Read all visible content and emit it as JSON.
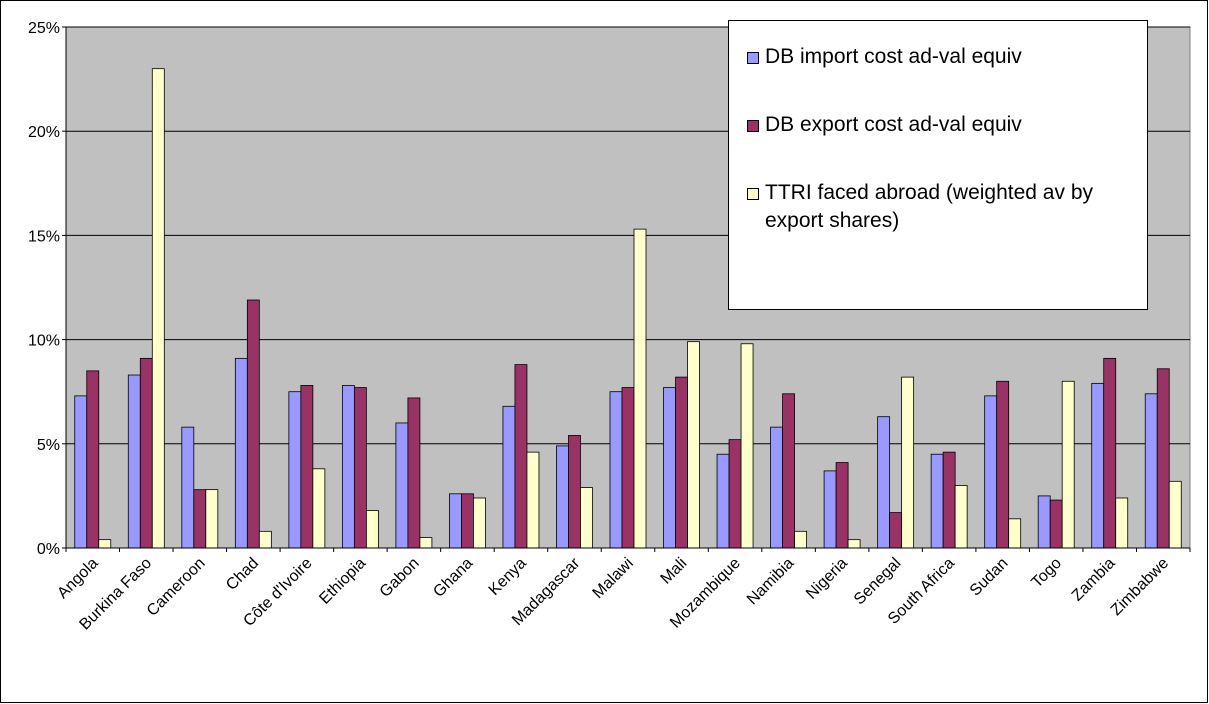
{
  "chart_data": {
    "type": "bar",
    "categories": [
      "Angola",
      "Burkina Faso",
      "Cameroon",
      "Chad",
      "Côte d'Ivoire",
      "Ethiopia",
      "Gabon",
      "Ghana",
      "Kenya",
      "Madagascar",
      "Malawi",
      "Mali",
      "Mozambique",
      "Namibia",
      "Nigeria",
      "Senegal",
      "South Africa",
      "Sudan",
      "Togo",
      "Zambia",
      "Zimbabwe"
    ],
    "series": [
      {
        "name": "DB import cost ad-val equiv",
        "color": "#9999ff",
        "values": [
          7.3,
          8.3,
          5.8,
          9.1,
          7.5,
          7.8,
          6.0,
          2.6,
          6.8,
          4.9,
          7.5,
          7.7,
          4.5,
          5.8,
          3.7,
          6.3,
          4.5,
          7.3,
          2.5,
          7.9,
          7.4
        ]
      },
      {
        "name": "DB export cost ad-val equiv",
        "color": "#993366",
        "values": [
          8.5,
          9.1,
          2.8,
          11.9,
          7.8,
          7.7,
          7.2,
          2.6,
          8.8,
          5.4,
          7.7,
          8.2,
          5.2,
          7.4,
          4.1,
          1.7,
          4.6,
          8.0,
          2.3,
          9.1,
          8.6
        ]
      },
      {
        "name": "TTRI faced abroad (weighted av by export shares)",
        "color": "#ffffcc",
        "values": [
          0.4,
          23.0,
          2.8,
          0.8,
          3.8,
          1.8,
          0.5,
          2.4,
          4.6,
          2.9,
          15.3,
          9.9,
          9.8,
          0.8,
          0.4,
          8.2,
          3.0,
          1.4,
          8.0,
          2.4,
          3.2
        ]
      }
    ],
    "ylim": [
      0,
      25
    ],
    "yticks": [
      {
        "value": 0,
        "label": "0%"
      },
      {
        "value": 5,
        "label": "5%"
      },
      {
        "value": 10,
        "label": "10%"
      },
      {
        "value": 15,
        "label": "15%"
      },
      {
        "value": 20,
        "label": "20%"
      },
      {
        "value": 25,
        "label": "25%"
      }
    ],
    "grid": true,
    "plot_background": "#c0c0c0",
    "legend_position": "upper right"
  }
}
